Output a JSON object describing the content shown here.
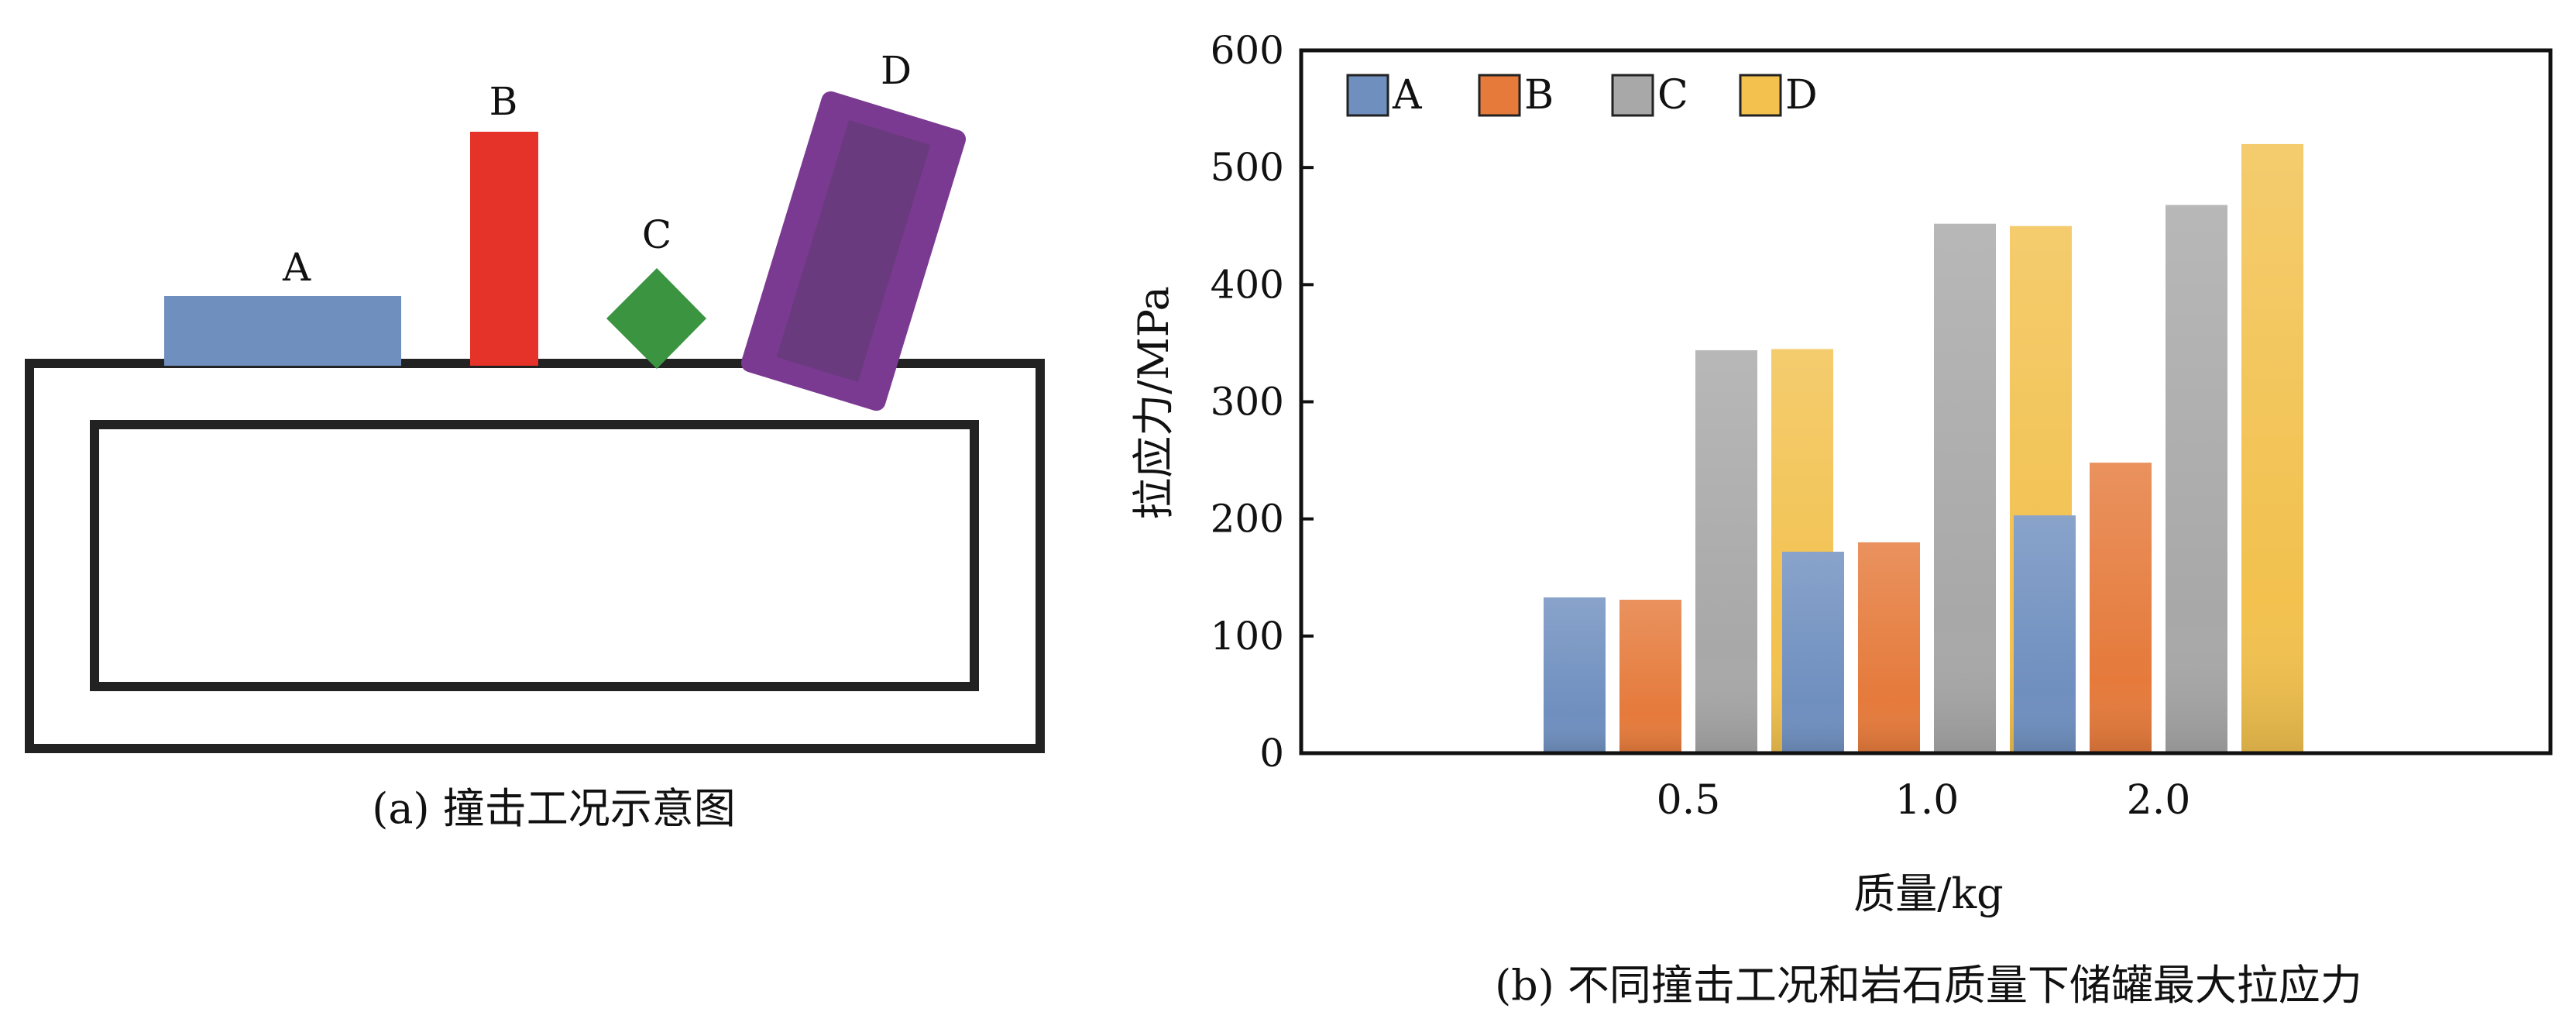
{
  "panel_a": {
    "caption": "(a) 撞击工况示意图",
    "labels": {
      "a": "A",
      "b": "B",
      "c": "C",
      "d": "D"
    },
    "colors": {
      "a": "#6f8fbf",
      "b": "#e5332a",
      "c": "#3a9440",
      "d": "#7b3a91",
      "d_inner": "#6a3a7e",
      "frame": "#222222"
    }
  },
  "panel_b": {
    "caption": "(b) 不同撞击工况和岩石质量下储罐最大拉应力"
  },
  "chart_data": {
    "type": "bar",
    "xlabel": "质量/kg",
    "ylabel": "拉应力/MPa",
    "categories": [
      "0.5",
      "1.0",
      "2.0"
    ],
    "ylim": [
      0,
      600
    ],
    "yticks": [
      0,
      100,
      200,
      300,
      400,
      500,
      600
    ],
    "legend_position": "top-left",
    "grid": false,
    "series": [
      {
        "name": "A",
        "color": "#6f8fbf",
        "values": [
          133,
          172,
          203
        ]
      },
      {
        "name": "B",
        "color": "#e57a3b",
        "values": [
          131,
          180,
          248
        ]
      },
      {
        "name": "C",
        "color": "#a8a8a8",
        "values": [
          344,
          452,
          468
        ]
      },
      {
        "name": "D",
        "color": "#f2c14e",
        "values": [
          345,
          450,
          520
        ]
      }
    ]
  }
}
